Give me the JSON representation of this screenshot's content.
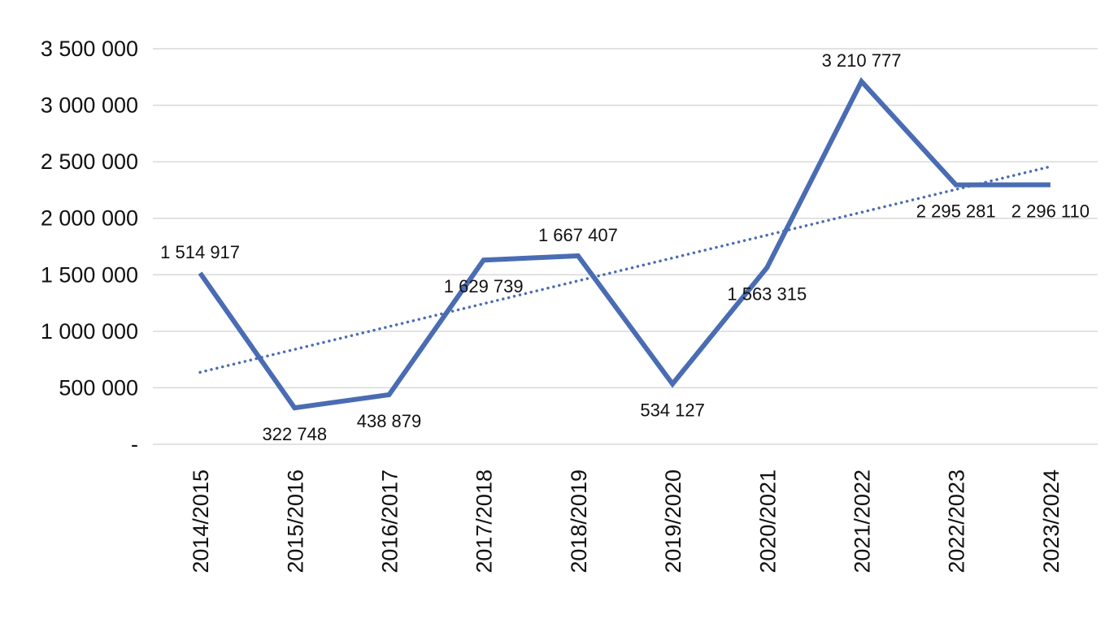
{
  "chart_data": {
    "type": "line",
    "title": "",
    "xlabel": "",
    "ylabel": "",
    "categories": [
      "2014/2015",
      "2015/2016",
      "2016/2017",
      "2017/2018",
      "2018/2019",
      "2019/2020",
      "2020/2021",
      "2021/2022",
      "2022/2023",
      "2023/2024"
    ],
    "series": [
      {
        "values": [
          1514917,
          322748,
          438879,
          1629739,
          1667407,
          534127,
          1563315,
          3210777,
          2295281,
          2296110
        ],
        "data_labels": [
          "1 514 917",
          "322 748",
          "438 879",
          "1 629 739",
          "1 667 407",
          "534 127",
          "1 563 315",
          "3 210 777",
          "2 295 281",
          "2 296 110"
        ],
        "color": "#4a6cb3"
      }
    ],
    "trendline": {
      "type": "linear",
      "style": "dotted",
      "color": "#4a6cb3"
    },
    "ylim": [
      0,
      3500000
    ],
    "yticks": [
      0,
      500000,
      1000000,
      1500000,
      2000000,
      2500000,
      3000000,
      3500000
    ],
    "ytick_labels": [
      "-",
      "500 000",
      "1 000 000",
      "1 500 000",
      "2 000 000",
      "2 500 000",
      "3 000 000",
      "3 500 000"
    ],
    "grid": true,
    "legend": "none"
  }
}
